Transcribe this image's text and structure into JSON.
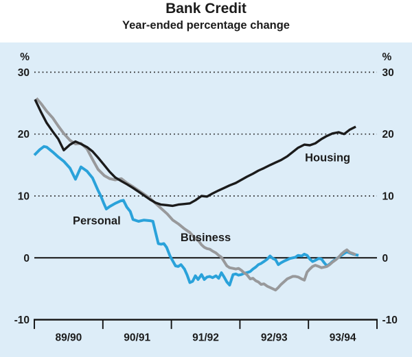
{
  "title": "Bank Credit",
  "subtitle": "Year-ended percentage change",
  "colors": {
    "panel_background": "#ddedf8",
    "text": "#1b1b1b",
    "grid": "#2a2a2a",
    "axis": "#111111",
    "housing_line": "#1b1b1b",
    "business_line": "#98999b",
    "personal_line": "#2aa2da"
  },
  "chart_data": {
    "type": "line",
    "title": "Bank Credit",
    "subtitle": "Year-ended percentage change",
    "unit_label": "%",
    "x_axis_note": "t = financial years since July 1989; axis ticks at each financial-year boundary",
    "x_tick_labels": [
      "89/90",
      "90/91",
      "91/92",
      "92/93",
      "93/94"
    ],
    "y_ticks": [
      30,
      20,
      10,
      0,
      -10
    ],
    "y_gridlines_dotted": [
      30,
      20,
      10
    ],
    "zero_line": 0,
    "ylim": [
      -10,
      33
    ],
    "xlim": [
      0,
      5
    ],
    "grid": "horizontal dotted at 10/20/30, solid line at 0, solid bottom axis at -10 with down ticks",
    "legend_position": "inline-labels",
    "series": [
      {
        "name": "Personal",
        "color": "#2aa2da",
        "label": {
          "t": 0.91,
          "v": 5.4
        },
        "points": [
          [
            0.0,
            16.6
          ],
          [
            0.08,
            17.5
          ],
          [
            0.14,
            18.0
          ],
          [
            0.18,
            17.9
          ],
          [
            0.27,
            17.1
          ],
          [
            0.35,
            16.3
          ],
          [
            0.43,
            15.6
          ],
          [
            0.52,
            14.5
          ],
          [
            0.6,
            12.7
          ],
          [
            0.68,
            14.7
          ],
          [
            0.77,
            14.0
          ],
          [
            0.85,
            12.9
          ],
          [
            0.93,
            10.9
          ],
          [
            0.97,
            10.0
          ],
          [
            1.01,
            8.9
          ],
          [
            1.05,
            7.9
          ],
          [
            1.1,
            8.3
          ],
          [
            1.18,
            8.8
          ],
          [
            1.26,
            9.2
          ],
          [
            1.3,
            9.3
          ],
          [
            1.35,
            8.2
          ],
          [
            1.4,
            7.5
          ],
          [
            1.44,
            6.2
          ],
          [
            1.52,
            5.9
          ],
          [
            1.6,
            6.1
          ],
          [
            1.69,
            6.0
          ],
          [
            1.73,
            5.9
          ],
          [
            1.77,
            4.1
          ],
          [
            1.81,
            2.3
          ],
          [
            1.85,
            2.2
          ],
          [
            1.89,
            2.3
          ],
          [
            1.93,
            1.7
          ],
          [
            1.98,
            0.3
          ],
          [
            2.02,
            -0.5
          ],
          [
            2.06,
            -1.3
          ],
          [
            2.1,
            -1.4
          ],
          [
            2.14,
            -1.1
          ],
          [
            2.19,
            -1.8
          ],
          [
            2.23,
            -2.8
          ],
          [
            2.27,
            -4.0
          ],
          [
            2.31,
            -3.8
          ],
          [
            2.35,
            -2.9
          ],
          [
            2.39,
            -3.5
          ],
          [
            2.44,
            -2.7
          ],
          [
            2.48,
            -3.5
          ],
          [
            2.52,
            -3.1
          ],
          [
            2.56,
            -3.0
          ],
          [
            2.6,
            -3.2
          ],
          [
            2.65,
            -2.9
          ],
          [
            2.69,
            -3.3
          ],
          [
            2.73,
            -2.4
          ],
          [
            2.77,
            -3.1
          ],
          [
            2.81,
            -3.9
          ],
          [
            2.85,
            -4.4
          ],
          [
            2.9,
            -2.7
          ],
          [
            2.94,
            -2.6
          ],
          [
            2.98,
            -2.8
          ],
          [
            3.02,
            -2.7
          ],
          [
            3.06,
            -2.5
          ],
          [
            3.1,
            -2.4
          ],
          [
            3.15,
            -2.2
          ],
          [
            3.19,
            -1.8
          ],
          [
            3.23,
            -1.5
          ],
          [
            3.27,
            -1.1
          ],
          [
            3.31,
            -0.9
          ],
          [
            3.35,
            -0.6
          ],
          [
            3.4,
            -0.2
          ],
          [
            3.44,
            0.3
          ],
          [
            3.48,
            -0.1
          ],
          [
            3.52,
            -0.3
          ],
          [
            3.56,
            -1.1
          ],
          [
            3.6,
            -0.8
          ],
          [
            3.65,
            -0.5
          ],
          [
            3.69,
            -0.3
          ],
          [
            3.73,
            -0.1
          ],
          [
            3.77,
            0.0
          ],
          [
            3.81,
            0.1
          ],
          [
            3.85,
            0.4
          ],
          [
            3.9,
            0.3
          ],
          [
            3.94,
            0.6
          ],
          [
            3.98,
            0.4
          ],
          [
            4.02,
            -0.2
          ],
          [
            4.06,
            -0.6
          ],
          [
            4.1,
            -0.4
          ],
          [
            4.15,
            -0.1
          ],
          [
            4.19,
            -0.2
          ],
          [
            4.23,
            -0.8
          ],
          [
            4.27,
            -1.3
          ],
          [
            4.31,
            -1.0
          ],
          [
            4.35,
            -0.6
          ],
          [
            4.4,
            -0.2
          ],
          [
            4.44,
            0.1
          ],
          [
            4.48,
            0.4
          ],
          [
            4.52,
            0.7
          ],
          [
            4.56,
            1.0
          ],
          [
            4.6,
            0.8
          ],
          [
            4.65,
            0.6
          ],
          [
            4.69,
            0.5
          ],
          [
            4.73,
            0.4
          ]
        ]
      },
      {
        "name": "Business",
        "color": "#98999b",
        "label": {
          "t": 2.5,
          "v": 2.7
        },
        "points": [
          [
            0.03,
            25.8
          ],
          [
            0.1,
            24.9
          ],
          [
            0.18,
            23.7
          ],
          [
            0.27,
            22.6
          ],
          [
            0.35,
            21.3
          ],
          [
            0.43,
            20.1
          ],
          [
            0.52,
            19.0
          ],
          [
            0.6,
            18.4
          ],
          [
            0.68,
            18.5
          ],
          [
            0.77,
            17.6
          ],
          [
            0.85,
            15.9
          ],
          [
            0.93,
            14.3
          ],
          [
            1.02,
            13.3
          ],
          [
            1.1,
            12.8
          ],
          [
            1.18,
            12.6
          ],
          [
            1.27,
            12.8
          ],
          [
            1.35,
            12.1
          ],
          [
            1.44,
            11.5
          ],
          [
            1.52,
            10.9
          ],
          [
            1.6,
            10.3
          ],
          [
            1.69,
            9.6
          ],
          [
            1.77,
            8.8
          ],
          [
            1.85,
            8.0
          ],
          [
            1.94,
            7.1
          ],
          [
            2.02,
            6.1
          ],
          [
            2.1,
            5.5
          ],
          [
            2.19,
            4.7
          ],
          [
            2.27,
            4.1
          ],
          [
            2.35,
            3.1
          ],
          [
            2.4,
            2.7
          ],
          [
            2.44,
            2.1
          ],
          [
            2.48,
            1.7
          ],
          [
            2.52,
            1.5
          ],
          [
            2.56,
            1.4
          ],
          [
            2.6,
            1.1
          ],
          [
            2.65,
            0.8
          ],
          [
            2.69,
            0.4
          ],
          [
            2.73,
            0.1
          ],
          [
            2.77,
            -0.6
          ],
          [
            2.81,
            -1.3
          ],
          [
            2.85,
            -1.6
          ],
          [
            2.9,
            -1.7
          ],
          [
            2.94,
            -1.8
          ],
          [
            2.98,
            -1.7
          ],
          [
            3.02,
            -2.0
          ],
          [
            3.06,
            -2.4
          ],
          [
            3.1,
            -2.7
          ],
          [
            3.15,
            -3.4
          ],
          [
            3.19,
            -3.3
          ],
          [
            3.23,
            -3.7
          ],
          [
            3.27,
            -3.9
          ],
          [
            3.31,
            -4.3
          ],
          [
            3.35,
            -4.2
          ],
          [
            3.4,
            -4.6
          ],
          [
            3.44,
            -4.8
          ],
          [
            3.48,
            -5.0
          ],
          [
            3.52,
            -5.2
          ],
          [
            3.56,
            -4.8
          ],
          [
            3.6,
            -4.3
          ],
          [
            3.65,
            -3.8
          ],
          [
            3.69,
            -3.4
          ],
          [
            3.73,
            -3.2
          ],
          [
            3.77,
            -3.0
          ],
          [
            3.81,
            -3.0
          ],
          [
            3.85,
            -3.1
          ],
          [
            3.9,
            -3.4
          ],
          [
            3.94,
            -3.6
          ],
          [
            3.98,
            -2.3
          ],
          [
            4.02,
            -1.8
          ],
          [
            4.06,
            -1.4
          ],
          [
            4.1,
            -1.2
          ],
          [
            4.15,
            -1.4
          ],
          [
            4.19,
            -1.6
          ],
          [
            4.23,
            -1.5
          ],
          [
            4.27,
            -1.4
          ],
          [
            4.31,
            -1.1
          ],
          [
            4.35,
            -0.7
          ],
          [
            4.4,
            -0.3
          ],
          [
            4.44,
            0.1
          ],
          [
            4.48,
            0.6
          ],
          [
            4.52,
            1.0
          ],
          [
            4.56,
            1.3
          ],
          [
            4.6,
            0.9
          ],
          [
            4.65,
            0.7
          ],
          [
            4.69,
            0.5
          ]
        ]
      },
      {
        "name": "Housing",
        "color": "#1b1b1b",
        "label": {
          "t": 4.28,
          "v": 15.6
        },
        "points": [
          [
            0.01,
            25.6
          ],
          [
            0.1,
            23.5
          ],
          [
            0.18,
            21.8
          ],
          [
            0.27,
            20.4
          ],
          [
            0.35,
            19.2
          ],
          [
            0.43,
            17.4
          ],
          [
            0.52,
            18.3
          ],
          [
            0.6,
            18.8
          ],
          [
            0.68,
            18.4
          ],
          [
            0.77,
            17.9
          ],
          [
            0.85,
            17.2
          ],
          [
            0.93,
            16.2
          ],
          [
            1.02,
            15.0
          ],
          [
            1.1,
            13.9
          ],
          [
            1.18,
            13.0
          ],
          [
            1.27,
            12.4
          ],
          [
            1.35,
            11.9
          ],
          [
            1.44,
            11.3
          ],
          [
            1.52,
            10.7
          ],
          [
            1.6,
            10.1
          ],
          [
            1.69,
            9.4
          ],
          [
            1.77,
            8.9
          ],
          [
            1.85,
            8.6
          ],
          [
            1.94,
            8.5
          ],
          [
            2.02,
            8.4
          ],
          [
            2.1,
            8.6
          ],
          [
            2.19,
            8.7
          ],
          [
            2.27,
            8.8
          ],
          [
            2.35,
            9.3
          ],
          [
            2.44,
            10.0
          ],
          [
            2.52,
            9.9
          ],
          [
            2.6,
            10.4
          ],
          [
            2.69,
            10.9
          ],
          [
            2.77,
            11.3
          ],
          [
            2.85,
            11.7
          ],
          [
            2.94,
            12.1
          ],
          [
            3.02,
            12.6
          ],
          [
            3.1,
            13.1
          ],
          [
            3.19,
            13.6
          ],
          [
            3.27,
            14.1
          ],
          [
            3.35,
            14.5
          ],
          [
            3.44,
            15.0
          ],
          [
            3.52,
            15.4
          ],
          [
            3.6,
            15.8
          ],
          [
            3.69,
            16.4
          ],
          [
            3.77,
            17.1
          ],
          [
            3.85,
            17.8
          ],
          [
            3.94,
            18.3
          ],
          [
            4.02,
            18.2
          ],
          [
            4.1,
            18.5
          ],
          [
            4.19,
            19.2
          ],
          [
            4.27,
            19.7
          ],
          [
            4.35,
            20.1
          ],
          [
            4.44,
            20.3
          ],
          [
            4.52,
            20.0
          ],
          [
            4.6,
            20.7
          ],
          [
            4.69,
            21.2
          ]
        ]
      }
    ]
  }
}
